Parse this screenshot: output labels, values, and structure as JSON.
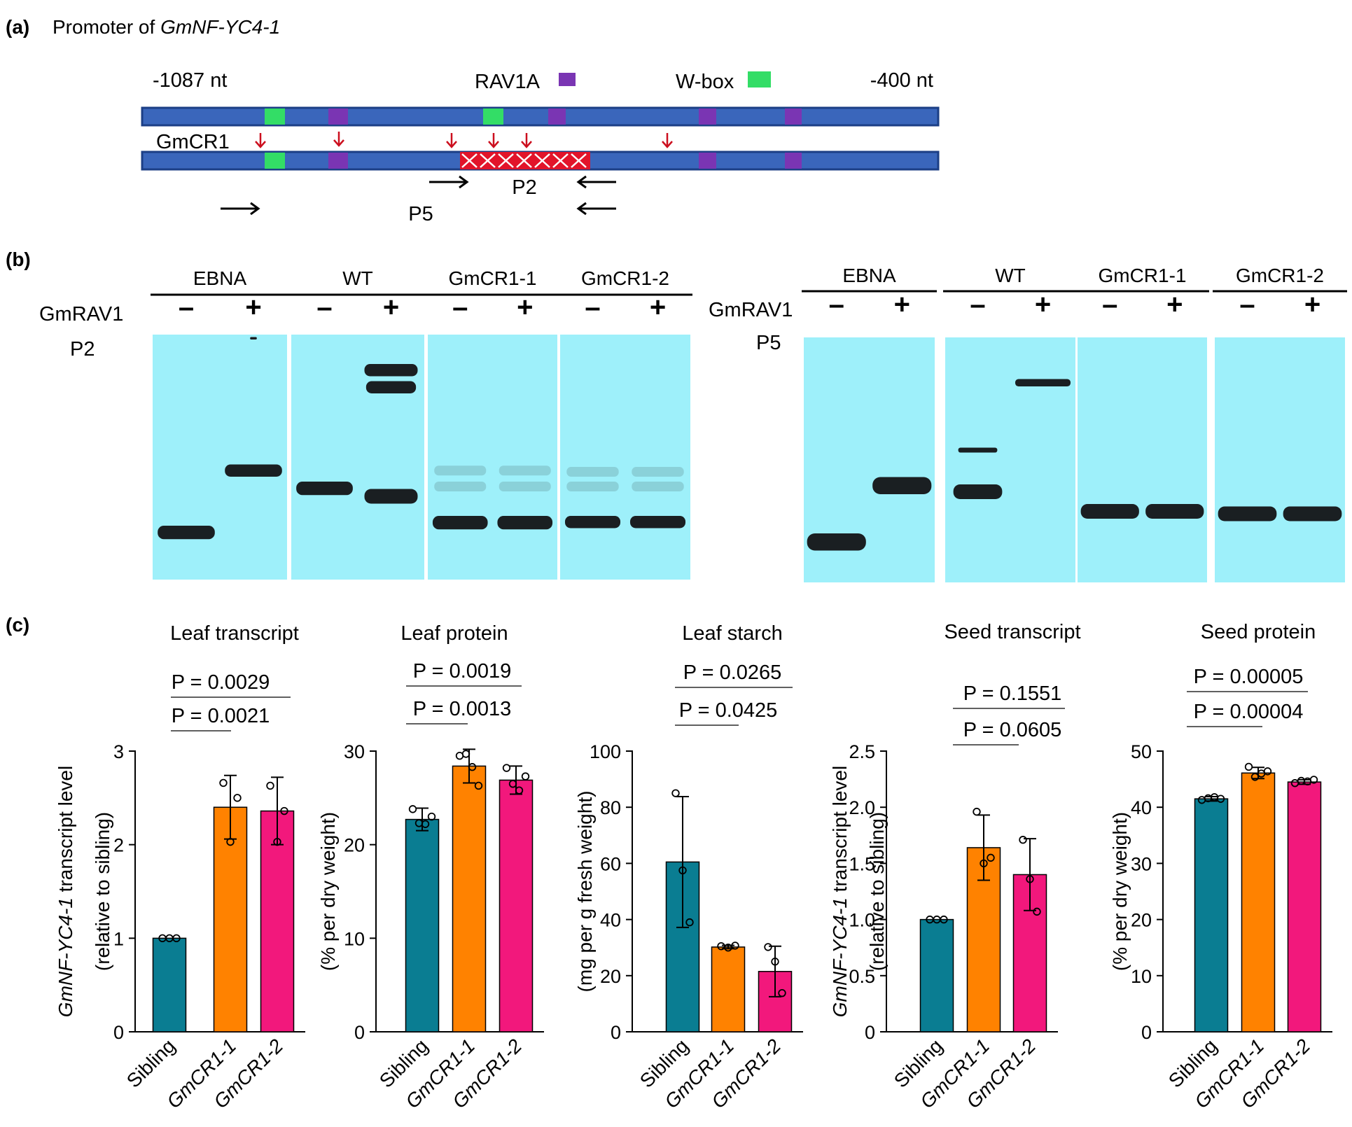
{
  "colors": {
    "promoter_bar": "#3a66bb",
    "promoter_border": "#1c3f86",
    "wbox": "#33dd66",
    "rav1a": "#7a35b3",
    "deletion": "#e2142a",
    "mutation_arrow": "#cc0f1e",
    "gel_bg": "#9ef0fa",
    "band": "#1a1f22",
    "sibling": "#0a7d92",
    "gmcr1_1": "#ff8200",
    "gmcr1_2": "#f2187c"
  },
  "panel_a": {
    "label": "(a)",
    "title_prefix": "Promoter of ",
    "title_gene": "GmNF-YC4-1",
    "start_label": "-1087 nt",
    "end_label": "-400 nt",
    "legend_rav1a": "RAV1A",
    "legend_wbox": "W-box",
    "mutant_label": "GmCR1",
    "primer_p2": "P2",
    "primer_p5": "P5"
  },
  "panel_b": {
    "label": "(b)",
    "gels": [
      {
        "probe": "P2",
        "protein": "GmRAV1",
        "groups": [
          {
            "name": "EBNA",
            "lanes": [
              "–",
              "+"
            ],
            "bands": [
              [
                {
                  "y": 0.78,
                  "w": 0.85,
                  "h": 0.055
                }
              ],
              [
                {
                  "y": 0.53,
                  "w": 0.85,
                  "h": 0.05
                },
                {
                  "y": 0.01,
                  "w": 0.1,
                  "h": 0.01
                }
              ]
            ]
          },
          {
            "name": "WT",
            "lanes": [
              "–",
              "+"
            ],
            "bands": [
              [
                {
                  "y": 0.6,
                  "w": 0.85,
                  "h": 0.055
                }
              ],
              [
                {
                  "y": 0.12,
                  "w": 0.8,
                  "h": 0.05
                },
                {
                  "y": 0.19,
                  "w": 0.75,
                  "h": 0.05
                },
                {
                  "y": 0.63,
                  "w": 0.8,
                  "h": 0.06
                }
              ]
            ]
          },
          {
            "name": "GmCR1-1",
            "lanes": [
              "–",
              "+"
            ],
            "bands": [
              [
                {
                  "y": 0.535,
                  "w": 0.8,
                  "h": 0.04,
                  "o": 0.15
                },
                {
                  "y": 0.6,
                  "w": 0.8,
                  "h": 0.04,
                  "o": 0.15
                },
                {
                  "y": 0.74,
                  "w": 0.85,
                  "h": 0.055
                }
              ],
              [
                {
                  "y": 0.535,
                  "w": 0.8,
                  "h": 0.04,
                  "o": 0.15
                },
                {
                  "y": 0.6,
                  "w": 0.8,
                  "h": 0.04,
                  "o": 0.15
                },
                {
                  "y": 0.74,
                  "w": 0.85,
                  "h": 0.055
                }
              ]
            ]
          },
          {
            "name": "GmCR1-2",
            "lanes": [
              "–",
              "+"
            ],
            "bands": [
              [
                {
                  "y": 0.54,
                  "w": 0.8,
                  "h": 0.04,
                  "o": 0.15
                },
                {
                  "y": 0.6,
                  "w": 0.8,
                  "h": 0.04,
                  "o": 0.15
                },
                {
                  "y": 0.74,
                  "w": 0.85,
                  "h": 0.05
                }
              ],
              [
                {
                  "y": 0.54,
                  "w": 0.8,
                  "h": 0.04,
                  "o": 0.15
                },
                {
                  "y": 0.6,
                  "w": 0.8,
                  "h": 0.04,
                  "o": 0.15
                },
                {
                  "y": 0.74,
                  "w": 0.85,
                  "h": 0.05
                }
              ]
            ]
          }
        ]
      },
      {
        "probe": "P5",
        "protein": "GmRAV1",
        "groups": [
          {
            "name": "EBNA",
            "lanes": [
              "–",
              "+"
            ],
            "bands": [
              [
                {
                  "y": 0.8,
                  "w": 0.9,
                  "h": 0.07
                }
              ],
              [
                {
                  "y": 0.57,
                  "w": 0.9,
                  "h": 0.07
                }
              ]
            ]
          },
          {
            "name": "WT",
            "lanes": [
              "–",
              "+"
            ],
            "bands": [
              [
                {
                  "y": 0.45,
                  "w": 0.6,
                  "h": 0.02
                },
                {
                  "y": 0.6,
                  "w": 0.75,
                  "h": 0.06
                }
              ],
              [
                {
                  "y": 0.17,
                  "w": 0.85,
                  "h": 0.03
                }
              ]
            ]
          },
          {
            "name": "GmCR1-1",
            "lanes": [
              "–",
              "+"
            ],
            "bands": [
              [
                {
                  "y": 0.68,
                  "w": 0.9,
                  "h": 0.06
                }
              ],
              [
                {
                  "y": 0.68,
                  "w": 0.9,
                  "h": 0.06
                }
              ]
            ]
          },
          {
            "name": "GmCR1-2",
            "lanes": [
              "–",
              "+"
            ],
            "bands": [
              [
                {
                  "y": 0.69,
                  "w": 0.9,
                  "h": 0.06
                }
              ],
              [
                {
                  "y": 0.69,
                  "w": 0.9,
                  "h": 0.06
                }
              ]
            ]
          }
        ]
      }
    ]
  },
  "panel_c": {
    "label": "(c)",
    "categories": [
      "Sibling",
      "GmCR1-1",
      "GmCR1-2"
    ],
    "category_italic": [
      false,
      true,
      true
    ]
  },
  "chart_data": [
    {
      "type": "bar",
      "title": "Leaf transcript",
      "categories": [
        "Sibling",
        "GmCR1-1",
        "GmCR1-2"
      ],
      "values": [
        1.0,
        2.4,
        2.36
      ],
      "error": [
        0.0,
        0.34,
        0.36
      ],
      "points": [
        [
          1.0,
          1.0,
          1.0
        ],
        [
          2.66,
          2.03,
          2.5
        ],
        [
          2.63,
          2.03,
          2.36
        ]
      ],
      "ylabel_italic": "GmNF-YC4-1",
      "ylabel_rest": " transcript level",
      "ylabel_line2": "(relative to sibling)",
      "ylim": [
        0,
        3
      ],
      "yticks": [
        "0",
        "1",
        "2",
        "3"
      ],
      "pvalues": [
        "P = 0.0029",
        "P = 0.0021"
      ]
    },
    {
      "type": "bar",
      "title": "Leaf protein",
      "categories": [
        "Sibling",
        "GmCR1-1",
        "GmCR1-2"
      ],
      "values": [
        22.7,
        28.4,
        26.9
      ],
      "error": [
        1.2,
        1.8,
        1.5
      ],
      "points": [
        [
          23.8,
          22.3,
          22.2,
          23.0
        ],
        [
          29.5,
          29.7,
          28.3,
          26.3
        ],
        [
          28.2,
          26.5,
          25.8,
          27.3
        ]
      ],
      "ylabel_italic": "",
      "ylabel_rest": "(% per dry weight)",
      "ylabel_line2": "",
      "ylim": [
        0,
        30
      ],
      "yticks": [
        "0",
        "10",
        "20",
        "30"
      ],
      "pvalues": [
        "P = 0.0019",
        "P = 0.0013"
      ]
    },
    {
      "type": "bar",
      "title": "Leaf starch",
      "categories": [
        "Sibling",
        "GmCR1-1",
        "GmCR1-2"
      ],
      "values": [
        60.5,
        30.2,
        21.5
      ],
      "error": [
        23.3,
        0.6,
        9.0
      ],
      "points": [
        [
          85.0,
          57.5,
          39.0
        ],
        [
          30.5,
          30.0,
          30.7
        ],
        [
          30.2,
          25.0,
          13.8
        ]
      ],
      "ylabel_italic": "",
      "ylabel_rest": "(mg per g fresh weight)",
      "ylabel_line2": "",
      "ylim": [
        0,
        100
      ],
      "yticks": [
        "0",
        "20",
        "40",
        "60",
        "80",
        "100"
      ],
      "pvalues": [
        "P = 0.0265",
        "P = 0.0425"
      ]
    },
    {
      "type": "bar",
      "title": "Seed transcript",
      "categories": [
        "Sibling",
        "GmCR1-1",
        "GmCR1-2"
      ],
      "values": [
        1.0,
        1.64,
        1.4
      ],
      "error": [
        0.0,
        0.29,
        0.32
      ],
      "points": [
        [
          1.0,
          1.0,
          1.0
        ],
        [
          1.96,
          1.5,
          1.55
        ],
        [
          1.71,
          1.36,
          1.07
        ]
      ],
      "ylabel_italic": "GmNF-YC4-1",
      "ylabel_rest": " transcript level",
      "ylabel_line2": "(relative to sibling)",
      "ylim": [
        0,
        2.5
      ],
      "yticks": [
        "0",
        "0.5",
        "1.0",
        "1.5",
        "2.0",
        "2.5"
      ],
      "pvalues": [
        "P = 0.1551",
        "P = 0.0605"
      ]
    },
    {
      "type": "bar",
      "title": "Seed protein",
      "categories": [
        "Sibling",
        "GmCR1-1",
        "GmCR1-2"
      ],
      "values": [
        41.5,
        46.1,
        44.5
      ],
      "error": [
        0.4,
        1.0,
        0.4
      ],
      "points": [
        [
          41.3,
          41.6,
          41.8,
          41.5
        ],
        [
          47.2,
          45.4,
          46.0,
          46.4
        ],
        [
          44.3,
          44.7,
          44.6,
          44.9
        ]
      ],
      "ylabel_italic": "",
      "ylabel_rest": "(% per dry weight)",
      "ylabel_line2": "",
      "ylim": [
        0,
        50
      ],
      "yticks": [
        "0",
        "10",
        "20",
        "30",
        "40",
        "50"
      ],
      "pvalues": [
        "P = 0.00005",
        "P = 0.00004"
      ]
    }
  ]
}
